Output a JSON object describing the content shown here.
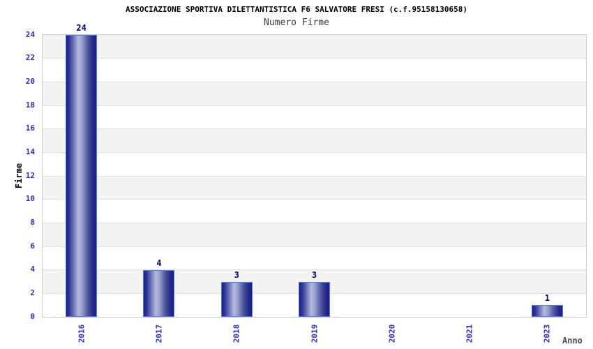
{
  "chart_data": {
    "type": "bar",
    "title": "ASSOCIAZIONE SPORTIVA DILETTANTISTICA F6 SALVATORE FRESI (c.f.95158130658)",
    "subtitle": "Numero Firme",
    "xlabel": "Anno",
    "ylabel": "Firme",
    "categories": [
      "2016",
      "2017",
      "2018",
      "2019",
      "2020",
      "2021",
      "2023"
    ],
    "values": [
      24,
      4,
      3,
      3,
      0,
      0,
      1
    ],
    "bar_value_labels": [
      "24",
      "4",
      "3",
      "3",
      "",
      "",
      "1"
    ],
    "ylim": [
      0,
      24
    ],
    "ytick_step": 2,
    "yticks": [
      0,
      2,
      4,
      6,
      8,
      10,
      12,
      14,
      16,
      18,
      20,
      22,
      24
    ],
    "grid": "alternating-horizontal-bands",
    "legend": "none",
    "colors": {
      "title": "#000000",
      "subtitle": "#3c3c3c",
      "axis_title": "#4a4a4a",
      "y_axis_title": "#000000",
      "axis_tick_label": "#2b2bd1",
      "bar_value_label": "#00007d",
      "bar_gradient_dark": "#1d1d80",
      "bar_gradient_mid": "#7d84bd",
      "bar_gradient_light": "#b3b9de",
      "bar_border": "#4d7de8",
      "band_shaded": "#f3f3f3",
      "band_plain": "#ffffff",
      "grid_line": "#e0e0e0",
      "plot_border": "#cccccc"
    }
  }
}
